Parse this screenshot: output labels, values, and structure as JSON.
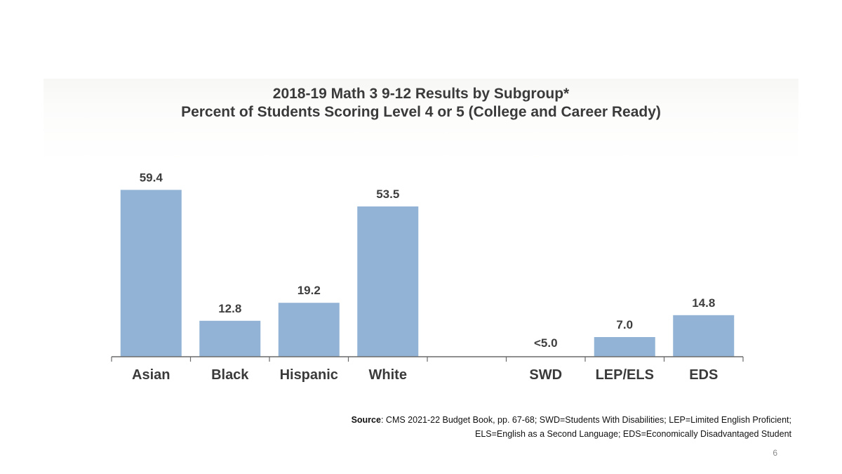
{
  "chart_data": {
    "type": "bar",
    "title": "2018-19 Math 3 9-12 Results by Subgroup*",
    "subtitle": "Percent of Students Scoring Level 4 or 5 (College and Career Ready)",
    "categories": [
      "Asian",
      "Black",
      "Hispanic",
      "White",
      "",
      "SWD",
      "LEP/ELS",
      "EDS"
    ],
    "values": [
      59.4,
      12.8,
      19.2,
      53.5,
      null,
      0,
      7.0,
      14.8
    ],
    "value_labels": [
      "59.4",
      "12.8",
      "19.2",
      "53.5",
      "",
      "<5.0",
      "7.0",
      "14.8"
    ],
    "ylim": [
      0,
      65
    ],
    "grid": false,
    "bar_color": "#92b3d6",
    "axis_color": "#6a6a6a"
  },
  "source": {
    "label": "Source",
    "line1": ": CMS 2021-22 Budget Book, pp. 67-68; SWD=Students With Disabilities; LEP=Limited English Proficient;",
    "line2": "ELS=English as a Second Language; EDS=Economically Disadvantaged Student"
  },
  "page_number": "6"
}
